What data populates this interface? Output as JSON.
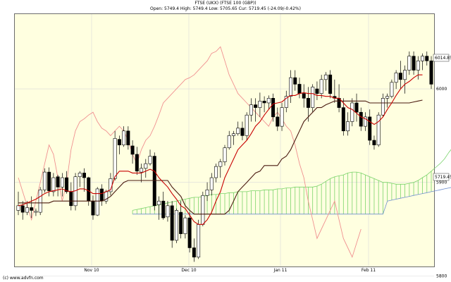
{
  "header": {
    "title": "FTSE (UKX) (FTSE 100 (GBP))",
    "ohlc": "Open: 5749.4 High: 5749.4 Low: 5705.65 Cur: 5719.45 (-24.09/-0.42%)"
  },
  "footer": {
    "credit": "(c) www.advfn.com"
  },
  "chart_data": {
    "type": "candlestick",
    "indicator": "Ichimoku",
    "y_ticks": [
      6000,
      5900,
      5800
    ],
    "x_ticks": [
      "Nov 10",
      "Dec 10",
      "Jan 11",
      "Feb 11"
    ],
    "ylim": [
      5810,
      6080
    ],
    "price_markers": {
      "upper": "6014.85",
      "current": "5719.45"
    },
    "colors": {
      "background": "#ffffe0",
      "tenkan": "#c80000",
      "kijun": "#4a1a10",
      "chikou": "#f09090",
      "cloud_bull": "#7ad36a",
      "cloud_bear": "#6f8fcf",
      "grid": "#d9d9d9"
    },
    "candles": [
      [
        5870,
        5890,
        5865,
        5875
      ],
      [
        5875,
        5880,
        5860,
        5868
      ],
      [
        5868,
        5880,
        5865,
        5873
      ],
      [
        5873,
        5885,
        5862,
        5870
      ],
      [
        5868,
        5872,
        5864,
        5869
      ],
      [
        5868,
        5895,
        5865,
        5892
      ],
      [
        5892,
        5915,
        5889,
        5911
      ],
      [
        5911,
        5916,
        5885,
        5891
      ],
      [
        5890,
        5910,
        5885,
        5905
      ],
      [
        5906,
        5908,
        5885,
        5895
      ],
      [
        5895,
        5910,
        5885,
        5905
      ],
      [
        5905,
        5912,
        5888,
        5890
      ],
      [
        5890,
        5900,
        5870,
        5875
      ],
      [
        5875,
        5910,
        5870,
        5906
      ],
      [
        5906,
        5912,
        5895,
        5910
      ],
      [
        5910,
        5915,
        5890,
        5905
      ],
      [
        5905,
        5906,
        5875,
        5880
      ],
      [
        5880,
        5886,
        5860,
        5865
      ],
      [
        5865,
        5895,
        5864,
        5893
      ],
      [
        5893,
        5898,
        5875,
        5880
      ],
      [
        5880,
        5892,
        5877,
        5890
      ],
      [
        5890,
        5910,
        5886,
        5904
      ],
      [
        5904,
        5955,
        5902,
        5947
      ],
      [
        5946,
        5950,
        5930,
        5940
      ],
      [
        5940,
        5960,
        5938,
        5955
      ],
      [
        5955,
        5960,
        5935,
        5940
      ],
      [
        5939,
        5945,
        5920,
        5930
      ],
      [
        5930,
        5938,
        5908,
        5912
      ],
      [
        5911,
        5920,
        5900,
        5915
      ],
      [
        5915,
        5925,
        5905,
        5920
      ],
      [
        5920,
        5935,
        5918,
        5928
      ],
      [
        5928,
        5932,
        5870,
        5875
      ],
      [
        5876,
        5885,
        5860,
        5880
      ],
      [
        5880,
        5890,
        5860,
        5862
      ],
      [
        5863,
        5880,
        5858,
        5875
      ],
      [
        5875,
        5880,
        5830,
        5838
      ],
      [
        5838,
        5872,
        5835,
        5870
      ],
      [
        5868,
        5880,
        5840,
        5845
      ],
      [
        5845,
        5865,
        5840,
        5862
      ],
      [
        5862,
        5868,
        5825,
        5830
      ],
      [
        5830,
        5840,
        5815,
        5820
      ],
      [
        5820,
        5860,
        5818,
        5855
      ],
      [
        5855,
        5890,
        5853,
        5886
      ],
      [
        5886,
        5900,
        5880,
        5892
      ],
      [
        5892,
        5910,
        5886,
        5905
      ],
      [
        5905,
        5920,
        5900,
        5917
      ],
      [
        5917,
        5925,
        5905,
        5922
      ],
      [
        5922,
        5940,
        5918,
        5937
      ],
      [
        5937,
        5955,
        5935,
        5950
      ],
      [
        5950,
        5955,
        5940,
        5952
      ],
      [
        5952,
        5965,
        5950,
        5958
      ],
      [
        5958,
        5965,
        5945,
        5950
      ],
      [
        5950,
        5975,
        5945,
        5972
      ],
      [
        5972,
        5990,
        5965,
        5983
      ],
      [
        5983,
        5990,
        5965,
        5980
      ],
      [
        5980,
        5996,
        5970,
        5987
      ],
      [
        5987,
        5992,
        5975,
        5985
      ],
      [
        5985,
        5993,
        5978,
        5990
      ],
      [
        5990,
        5995,
        5965,
        5970
      ],
      [
        5970,
        5980,
        5955,
        5960
      ],
      [
        5960,
        5985,
        5955,
        5980
      ],
      [
        5980,
        5998,
        5975,
        5992
      ],
      [
        5992,
        6020,
        5985,
        6012
      ],
      [
        6012,
        6020,
        5998,
        6005
      ],
      [
        6005,
        6012,
        5990,
        5995
      ],
      [
        5995,
        6005,
        5980,
        5990
      ],
      [
        5990,
        6002,
        5965,
        5980
      ],
      [
        5980,
        6005,
        5975,
        6002
      ],
      [
        6000,
        6008,
        5988,
        5995
      ],
      [
        5995,
        6015,
        5990,
        6010
      ],
      [
        6010,
        6018,
        5998,
        6015
      ],
      [
        6015,
        6020,
        5990,
        5995
      ],
      [
        5992,
        6010,
        5985,
        5990
      ],
      [
        5990,
        6005,
        5975,
        5980
      ],
      [
        5980,
        5990,
        5950,
        5955
      ],
      [
        5955,
        5975,
        5950,
        5965
      ],
      [
        5965,
        5990,
        5960,
        5985
      ],
      [
        5985,
        5995,
        5965,
        5975
      ],
      [
        5975,
        5980,
        5955,
        5960
      ],
      [
        5960,
        5975,
        5955,
        5970
      ],
      [
        5970,
        5978,
        5940,
        5945
      ],
      [
        5945,
        5950,
        5935,
        5940
      ],
      [
        5940,
        5975,
        5938,
        5972
      ],
      [
        5972,
        5995,
        5970,
        5990
      ],
      [
        5990,
        5995,
        5980,
        5992
      ],
      [
        5992,
        6010,
        5990,
        6007
      ],
      [
        6007,
        6020,
        6000,
        6017
      ],
      [
        6017,
        6030,
        6000,
        6010
      ],
      [
        6010,
        6025,
        5995,
        6020
      ],
      [
        6020,
        6040,
        6015,
        6035
      ],
      [
        6035,
        6040,
        6015,
        6020
      ],
      [
        6020,
        6035,
        6010,
        6030
      ],
      [
        6030,
        6038,
        6020,
        6035
      ],
      [
        6035,
        6040,
        6025,
        6030
      ],
      [
        6030,
        6035,
        6000,
        6005
      ]
    ],
    "tenkan": [
      5875,
      5876,
      5878,
      5880,
      5882,
      5885,
      5888,
      5890,
      5891,
      5892,
      5893,
      5891,
      5890,
      5891,
      5893,
      5893,
      5891,
      5888,
      5888,
      5888,
      5890,
      5892,
      5906,
      5912,
      5912,
      5912,
      5910,
      5910,
      5910,
      5912,
      5914,
      5912,
      5905,
      5900,
      5895,
      5888,
      5882,
      5875,
      5872,
      5865,
      5858,
      5855,
      5855,
      5860,
      5868,
      5880,
      5890,
      5905,
      5915,
      5925,
      5935,
      5940,
      5945,
      5952,
      5960,
      5965,
      5972,
      5978,
      5984,
      5985,
      5986,
      5990,
      5993,
      5993,
      5995,
      5996,
      5995,
      5995,
      5993,
      5993,
      5992,
      5992,
      5990,
      5990,
      5985,
      5980,
      5978,
      5974,
      5970,
      5968,
      5965,
      5962,
      5965,
      5970,
      5978,
      5985,
      5993,
      6000,
      6005,
      6008,
      6012,
      6015,
      6015
    ],
    "kijun": [
      5878,
      5878,
      5878,
      5878,
      5878,
      5878,
      5878,
      5878,
      5880,
      5880,
      5880,
      5880,
      5880,
      5880,
      5880,
      5880,
      5880,
      5880,
      5880,
      5880,
      5882,
      5885,
      5890,
      5895,
      5900,
      5902,
      5902,
      5902,
      5902,
      5902,
      5902,
      5902,
      5902,
      5902,
      5902,
      5895,
      5890,
      5885,
      5875,
      5870,
      5866,
      5866,
      5866,
      5866,
      5866,
      5866,
      5866,
      5866,
      5870,
      5880,
      5890,
      5895,
      5900,
      5905,
      5910,
      5912,
      5918,
      5918,
      5918,
      5918,
      5925,
      5928,
      5935,
      5945,
      5955,
      5965,
      5970,
      5975,
      5980,
      5980,
      5983,
      5985,
      5987,
      5987,
      5987,
      5987,
      5987,
      5987,
      5987,
      5987,
      5985,
      5985,
      5985,
      5985,
      5985,
      5985,
      5985,
      5985,
      5985,
      5985,
      5986,
      5987,
      5988
    ],
    "span_a": [
      5870,
      5871,
      5872,
      5873,
      5874,
      5875,
      5876,
      5877,
      5878,
      5879,
      5880,
      5881,
      5882,
      5883,
      5884,
      5884,
      5885,
      5886,
      5887,
      5887,
      5888,
      5888,
      5889,
      5889,
      5890,
      5890,
      5890,
      5891,
      5891,
      5891,
      5892,
      5892,
      5892,
      5893,
      5893,
      5894,
      5894,
      5895,
      5895,
      5895,
      5895,
      5895,
      5896,
      5898,
      5901,
      5904,
      5906,
      5907,
      5908,
      5910,
      5911,
      5911,
      5910,
      5908,
      5906,
      5904,
      5902,
      5900,
      5900,
      5899,
      5898,
      5898,
      5898,
      5899,
      5900,
      5902,
      5905,
      5908,
      5912,
      5916,
      5920,
      5925,
      5932,
      5938,
      5945,
      5952,
      5958,
      5963,
      5968,
      5972,
      5975,
      5978,
      5981,
      5983,
      5985,
      5987,
      5990,
      5992,
      5995,
      6000,
      6008,
      6015,
      6020
    ],
    "span_b": [
      5866,
      5866,
      5866,
      5866,
      5866,
      5866,
      5866,
      5866,
      5866,
      5866,
      5866,
      5866,
      5866,
      5866,
      5866,
      5866,
      5866,
      5866,
      5866,
      5866,
      5866,
      5866,
      5866,
      5866,
      5866,
      5866,
      5866,
      5866,
      5866,
      5866,
      5866,
      5866,
      5866,
      5866,
      5866,
      5866,
      5866,
      5866,
      5866,
      5866,
      5866,
      5866,
      5866,
      5866,
      5866,
      5866,
      5866,
      5866,
      5866,
      5866,
      5866,
      5866,
      5866,
      5866,
      5866,
      5866,
      5866,
      5866,
      5880,
      5881,
      5882,
      5883,
      5884,
      5885,
      5886,
      5887,
      5888,
      5889,
      5890,
      5891,
      5892,
      5893,
      5894,
      5895,
      5895,
      5896,
      5896,
      5897,
      5898,
      5899,
      5900,
      5901,
      5902,
      5903,
      5904,
      5905,
      5906,
      5907,
      5908,
      5909,
      5910,
      5911,
      5912
    ],
    "chikou": [
      5905,
      5890,
      5875,
      5860,
      5880,
      5900,
      5920,
      5940,
      5930,
      5905,
      5880,
      5900,
      5935,
      5955,
      5965,
      5968,
      5972,
      5975,
      5965,
      5958,
      5955,
      5950,
      5955,
      5960,
      5955,
      5945,
      5930,
      5920,
      5935,
      5945,
      5950,
      5960,
      5972,
      5985,
      5990,
      5995,
      6000,
      6005,
      6010,
      6012,
      6015,
      6020,
      6025,
      6030,
      6038,
      6040,
      6045,
      6030,
      6015,
      6005,
      5995,
      5990,
      5985,
      5980,
      5975,
      5970,
      5965,
      5960,
      5970,
      5975,
      5968,
      5960,
      5955,
      5940,
      5920,
      5905,
      5880,
      5860,
      5840,
      5850,
      5860,
      5870,
      5880,
      5860,
      5840,
      5830,
      5820,
      5835,
      5850
    ]
  }
}
